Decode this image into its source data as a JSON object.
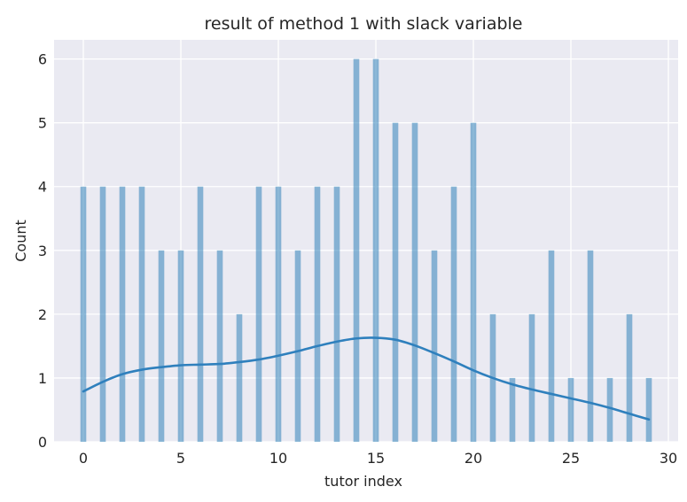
{
  "chart_data": {
    "type": "bar",
    "title": "result of method 1 with slack variable",
    "xlabel": "tutor index",
    "ylabel": "Count",
    "xlim": [
      -1.5,
      30.5
    ],
    "ylim": [
      0,
      6.3
    ],
    "xticks": [
      0,
      5,
      10,
      15,
      20,
      25,
      30
    ],
    "yticks": [
      0,
      1,
      2,
      3,
      4,
      5,
      6
    ],
    "grid": true,
    "background": "#eaeaf2",
    "bar_color": "#1f77b4",
    "kde_color": "#2f80bd",
    "series": [
      {
        "kind": "histogram",
        "x": [
          0,
          1,
          2,
          3,
          4,
          5,
          6,
          7,
          8,
          9,
          10,
          11,
          12,
          13,
          14,
          15,
          16,
          17,
          18,
          19,
          20,
          21,
          22,
          23,
          24,
          25,
          26,
          27,
          28,
          29
        ],
        "values": [
          4,
          4,
          4,
          4,
          3,
          3,
          4,
          3,
          2,
          4,
          4,
          3,
          4,
          4,
          6,
          6,
          5,
          5,
          3,
          4,
          5,
          2,
          1,
          2,
          3,
          1,
          3,
          1,
          2,
          1
        ]
      },
      {
        "kind": "kde",
        "x": [
          0,
          1,
          2,
          3,
          4,
          5,
          6,
          7,
          8,
          9,
          10,
          11,
          12,
          13,
          14,
          15,
          16,
          17,
          18,
          19,
          20,
          21,
          22,
          23,
          24,
          25,
          26,
          27,
          28,
          29
        ],
        "values": [
          0.79,
          0.94,
          1.06,
          1.13,
          1.17,
          1.2,
          1.21,
          1.22,
          1.25,
          1.29,
          1.35,
          1.42,
          1.5,
          1.57,
          1.62,
          1.63,
          1.6,
          1.51,
          1.39,
          1.26,
          1.12,
          1.0,
          0.9,
          0.82,
          0.75,
          0.68,
          0.61,
          0.53,
          0.44,
          0.35
        ]
      }
    ]
  }
}
